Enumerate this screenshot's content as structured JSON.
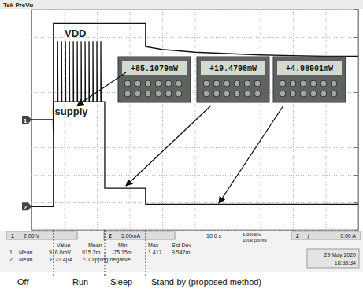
{
  "chart_data": {
    "type": "line",
    "xlim": [
      0,
      100
    ],
    "xticks": [
      0,
      10,
      20,
      30,
      40,
      50,
      60,
      70,
      80,
      90,
      100
    ],
    "ylim": [
      -8,
      8
    ],
    "yticks": [
      -8,
      -6,
      -4,
      -2,
      0,
      2,
      4,
      6,
      8
    ],
    "y2lim": [
      -4.25,
      35.75
    ],
    "y2ticks": [
      -4.25,
      0.75,
      5.75,
      10.75,
      15.75,
      20.75,
      25.75,
      30.75,
      35.75
    ],
    "grid": true,
    "tick_labels": false,
    "series": [
      {
        "name": "VDD",
        "color": "#111111",
        "x": [
          0,
          6.6,
          6.7,
          6.7,
          34.9,
          34.9,
          40,
          50,
          60,
          70,
          80,
          90,
          100
        ],
        "values": [
          0,
          0,
          -1,
          7,
          7,
          5.3,
          5.1,
          4.9,
          4.8,
          4.7,
          4.65,
          4.6,
          4.6
        ]
      },
      {
        "name": "Isupply",
        "color": "#111111",
        "axis": "y2",
        "x": [
          0,
          6.7,
          6.7,
          8,
          8,
          8.1,
          9.2,
          9.2,
          9.3,
          10.4,
          10.4,
          10.5,
          11.6,
          11.6,
          11.7,
          12.8,
          12.8,
          12.9,
          14,
          14,
          14.1,
          15.2,
          15.2,
          15.3,
          16.4,
          16.4,
          16.5,
          17.6,
          17.6,
          17.7,
          18.8,
          18.8,
          18.9,
          20,
          20,
          20.1,
          21.2,
          21.2,
          21.3,
          22.4,
          22.4,
          34.9,
          34.9,
          100
        ],
        "values": [
          0,
          0,
          19,
          19,
          30,
          19,
          19,
          30,
          19,
          19,
          30,
          19,
          19,
          30,
          19,
          19,
          30,
          19,
          19,
          30,
          19,
          19,
          30,
          19,
          19,
          30,
          19,
          19,
          30,
          19,
          19,
          30,
          19,
          19,
          30,
          19,
          19,
          30,
          19,
          19,
          3.3,
          3.3,
          0.4,
          0.4
        ]
      }
    ]
  },
  "header": {
    "brand": "Tek PreVu"
  },
  "channel_markers": [
    "1",
    "2"
  ],
  "meters": [
    "+85.1079mW",
    "+19.4798mW",
    "+4.98901mW"
  ],
  "readout": {
    "ch1_scale": {
      "channel": "1",
      "text": "2.00 V"
    },
    "ch2_scale": {
      "channel": "2",
      "text": "5.00mA"
    },
    "timebase": "10.0 s",
    "sample_rate": "1.00kS/s",
    "record_length": "100k points",
    "trigger": {
      "channel": "2",
      "symbol": "ƒ",
      "level": "0.00 A"
    },
    "table_header": [
      "Value",
      "Mean",
      "Min",
      "Max",
      "Std Dev"
    ],
    "rows": [
      [
        "1",
        "Mean",
        "916.0mV",
        "915.2m",
        "-75.15m",
        "1.417",
        "9.547m"
      ],
      [
        "2",
        "Mean",
        ">122.4µA",
        "⚠ Clipping negative"
      ]
    ],
    "date": "29 May 2020",
    "time": "18:38:34"
  },
  "phases": [
    "Off",
    "Run",
    "Sleep",
    "Stand-by (proposed method)"
  ]
}
